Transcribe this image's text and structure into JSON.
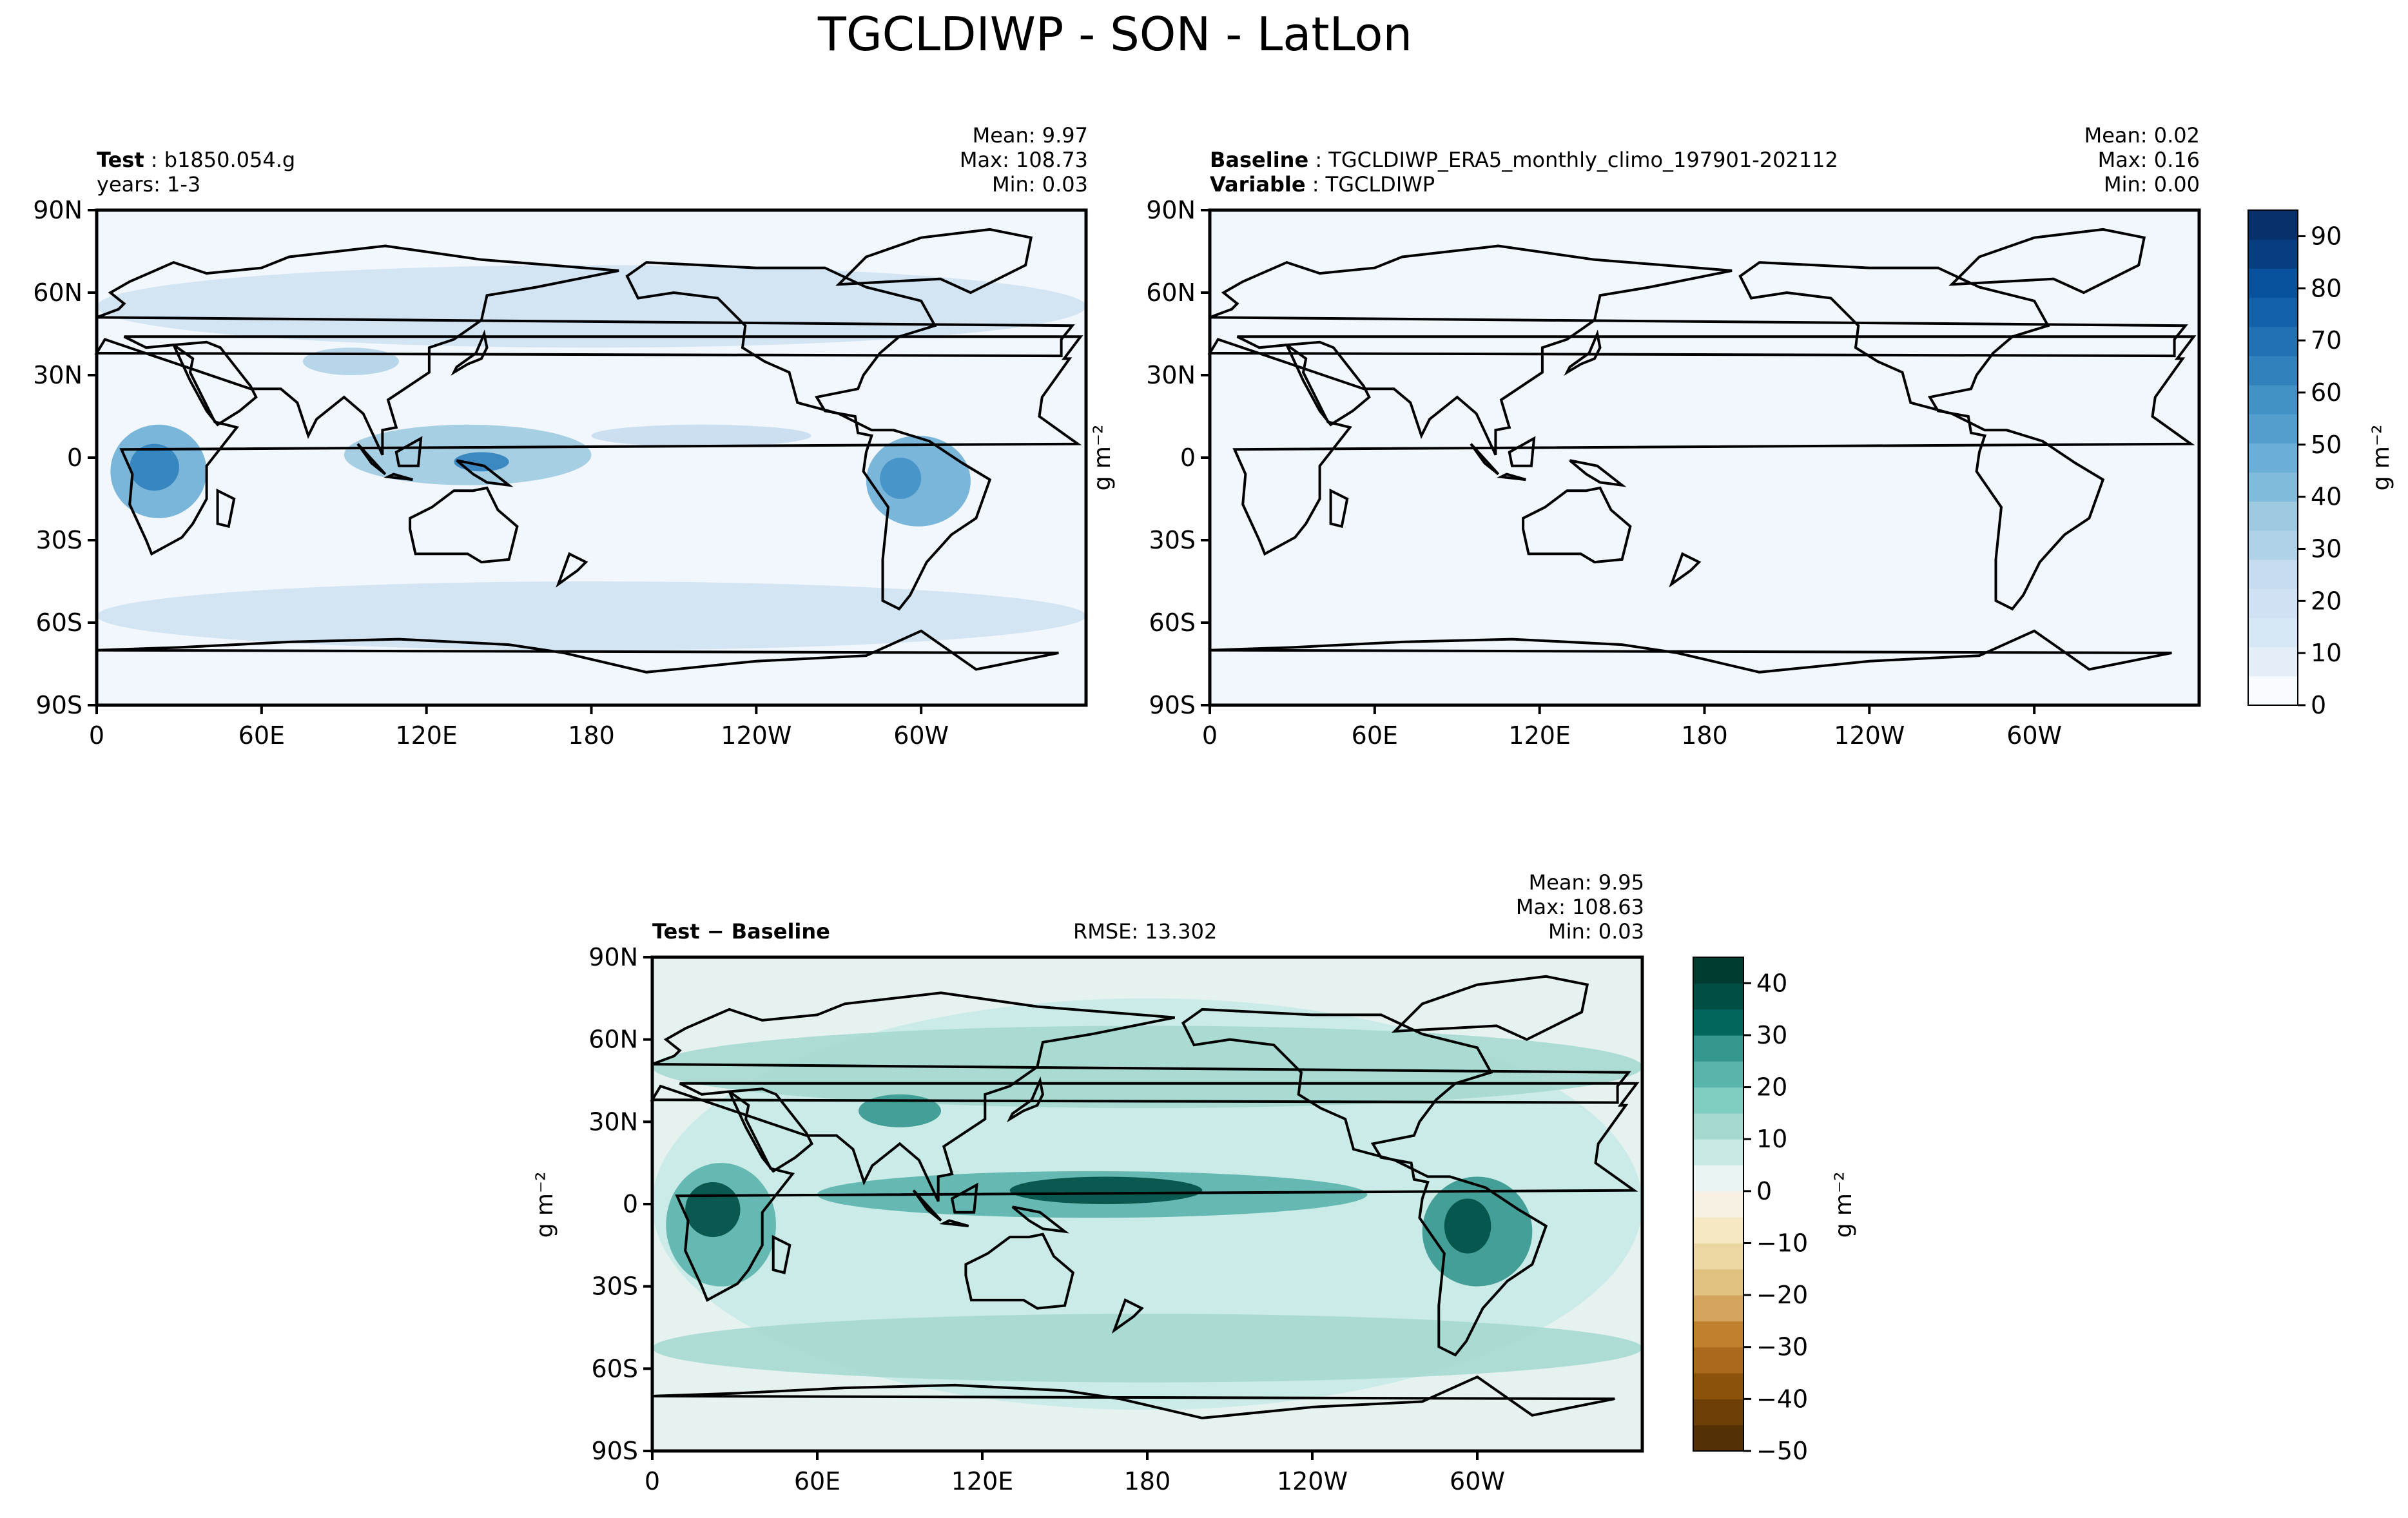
{
  "figure": {
    "title": "TGCLDIWP - SON - LatLon"
  },
  "colors": {
    "blues": [
      "#f7fbff",
      "#e3eef9",
      "#d8e7f5",
      "#cfe1f2",
      "#c6dbef",
      "#b0d2e8",
      "#9ecae1",
      "#82badb",
      "#6baed6",
      "#539ecd",
      "#4292c6",
      "#3181bd",
      "#2171b5",
      "#1361a9",
      "#08519c",
      "#083e81",
      "#08306b"
    ],
    "brbg": [
      "#543005",
      "#6e3f07",
      "#8c510a",
      "#a8691d",
      "#bf812d",
      "#d4a45f",
      "#dfc27d",
      "#ecd7a3",
      "#f6e8c3",
      "#f5f0e2",
      "#eaf4f2",
      "#c7eae5",
      "#a5d9d0",
      "#80cdc1",
      "#5ab4ac",
      "#35978f",
      "#01665e",
      "#004f45",
      "#003c30"
    ],
    "land_outline": "#000000"
  },
  "chart_data": [
    {
      "type": "heatmap",
      "panel": "test",
      "label_bold": "Test",
      "label_value": "b1850.054.g",
      "label_line2": "years: 1-3",
      "stats": {
        "mean": "Mean:  9.97",
        "max": "Max: 108.73",
        "min": "Min:  0.03"
      },
      "xlabel": "",
      "ylabel": "",
      "xticks": [
        "0",
        "60E",
        "120E",
        "180",
        "120W",
        "60W"
      ],
      "yticks": [
        "90N",
        "60N",
        "30N",
        "0",
        "30S",
        "60S",
        "90S"
      ],
      "xlim": [
        0,
        360
      ],
      "ylim": [
        -90,
        90
      ],
      "field_levels": [
        {
          "lon": [
            5,
            40
          ],
          "lat": [
            -22,
            12
          ],
          "level": 8
        },
        {
          "lon": [
            12,
            30
          ],
          "lat": [
            -12,
            5
          ],
          "level": 11
        },
        {
          "lon": [
            280,
            318
          ],
          "lat": [
            -25,
            8
          ],
          "level": 8
        },
        {
          "lon": [
            285,
            300
          ],
          "lat": [
            -15,
            0
          ],
          "level": 10
        },
        {
          "lon": [
            90,
            180
          ],
          "lat": [
            -10,
            12
          ],
          "level": 6
        },
        {
          "lon": [
            130,
            150
          ],
          "lat": [
            -5,
            2
          ],
          "level": 11
        },
        {
          "lon": [
            180,
            260
          ],
          "lat": [
            4,
            12
          ],
          "level": 4
        },
        {
          "lon": [
            75,
            110
          ],
          "lat": [
            30,
            40
          ],
          "level": 5
        },
        {
          "lon": [
            0,
            360
          ],
          "lat": [
            -70,
            -45
          ],
          "level": 3
        },
        {
          "lon": [
            0,
            360
          ],
          "lat": [
            40,
            70
          ],
          "level": 3
        }
      ]
    },
    {
      "type": "heatmap",
      "panel": "baseline",
      "label_bold_1": "Baseline",
      "label_value_1": "TGCLDIWP_ERA5_monthly_climo_197901-202112",
      "label_bold_2": "Variable",
      "label_value_2": "TGCLDIWP",
      "stats": {
        "mean": "Mean:  0.02",
        "max": "Max:  0.16",
        "min": "Min:  0.00"
      },
      "xticks": [
        "0",
        "60E",
        "120E",
        "180",
        "120W",
        "60W"
      ],
      "yticks": [
        "90N",
        "60N",
        "30N",
        "0",
        "30S",
        "60S",
        "90S"
      ],
      "xlim": [
        0,
        360
      ],
      "ylim": [
        -90,
        90
      ],
      "ylabel": "g m⁻²",
      "colorbar": {
        "label": "g m⁻²",
        "ticks": [
          "0",
          "10",
          "20",
          "30",
          "40",
          "50",
          "60",
          "70",
          "80",
          "90"
        ],
        "range": [
          0,
          95
        ]
      }
    },
    {
      "type": "heatmap",
      "panel": "diff",
      "label_bold": "Test − Baseline",
      "rmse": "RMSE: 13.302",
      "stats": {
        "mean": "Mean:  9.95",
        "max": "Max: 108.63",
        "min": "Min:  0.03"
      },
      "xticks": [
        "0",
        "60E",
        "120E",
        "180",
        "120W",
        "60W"
      ],
      "yticks": [
        "90N",
        "60N",
        "30N",
        "0",
        "30S",
        "60S",
        "90S"
      ],
      "xlim": [
        0,
        360
      ],
      "ylim": [
        -90,
        90
      ],
      "ylabel": "g m⁻²",
      "colorbar": {
        "label": "g m⁻²",
        "ticks": [
          "40",
          "30",
          "20",
          "10",
          "0",
          "−10",
          "−20",
          "−30",
          "−40",
          "−50"
        ],
        "range": [
          -50,
          45
        ]
      },
      "field_levels": [
        {
          "lon": [
            0,
            360
          ],
          "lat": [
            -75,
            75
          ],
          "level": 11
        },
        {
          "lon": [
            0,
            360
          ],
          "lat": [
            -65,
            -40
          ],
          "level": 12
        },
        {
          "lon": [
            0,
            360
          ],
          "lat": [
            35,
            65
          ],
          "level": 12
        },
        {
          "lon": [
            5,
            45
          ],
          "lat": [
            -30,
            15
          ],
          "level": 14
        },
        {
          "lon": [
            12,
            32
          ],
          "lat": [
            -12,
            8
          ],
          "level": 17
        },
        {
          "lon": [
            60,
            260
          ],
          "lat": [
            -5,
            12
          ],
          "level": 14
        },
        {
          "lon": [
            130,
            200
          ],
          "lat": [
            0,
            10
          ],
          "level": 17
        },
        {
          "lon": [
            280,
            320
          ],
          "lat": [
            -30,
            10
          ],
          "level": 15
        },
        {
          "lon": [
            288,
            305
          ],
          "lat": [
            -18,
            2
          ],
          "level": 17
        },
        {
          "lon": [
            75,
            105
          ],
          "lat": [
            28,
            40
          ],
          "level": 15
        }
      ]
    }
  ]
}
